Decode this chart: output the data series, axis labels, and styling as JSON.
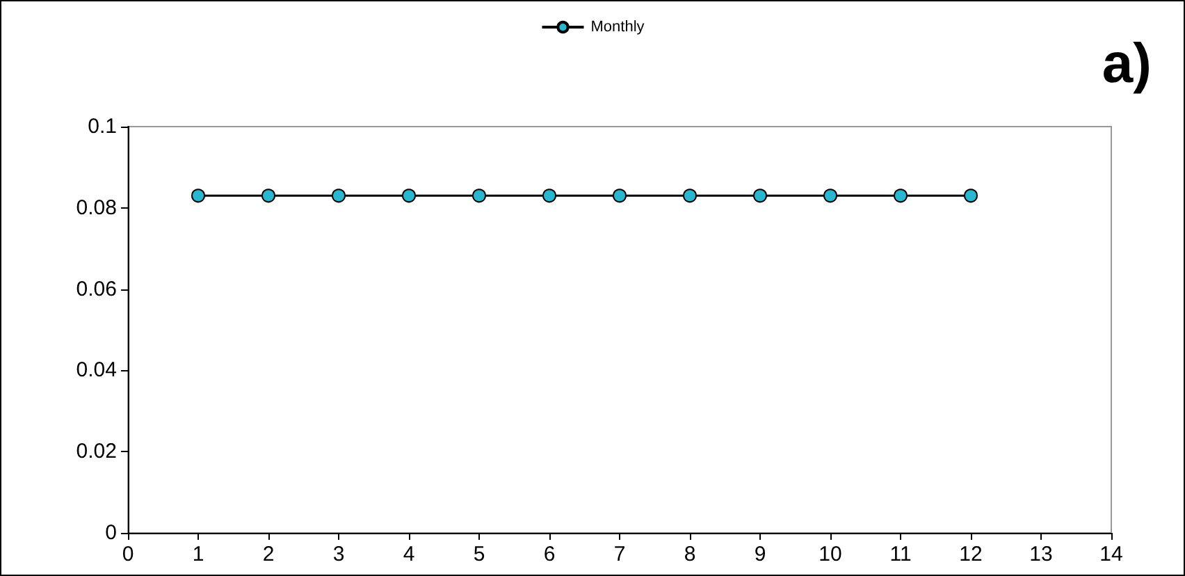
{
  "chart_data": {
    "type": "line",
    "x": [
      1,
      2,
      3,
      4,
      5,
      6,
      7,
      8,
      9,
      10,
      11,
      12
    ],
    "series": [
      {
        "name": "Monthly",
        "color": "#29b6d1",
        "values": [
          0.083,
          0.083,
          0.083,
          0.083,
          0.083,
          0.083,
          0.083,
          0.083,
          0.083,
          0.083,
          0.083,
          0.083
        ]
      }
    ],
    "xlim": [
      0,
      14
    ],
    "xticks": [
      0,
      1,
      2,
      3,
      4,
      5,
      6,
      7,
      8,
      9,
      10,
      11,
      12,
      13,
      14
    ],
    "ylim": [
      0,
      0.1
    ],
    "yticks": [
      0,
      0.02,
      0.04,
      0.06,
      0.08,
      0.1
    ],
    "annotations": [
      "a)"
    ],
    "grid": false,
    "legend": "top",
    "marker": "circle",
    "line_style": "solid"
  }
}
